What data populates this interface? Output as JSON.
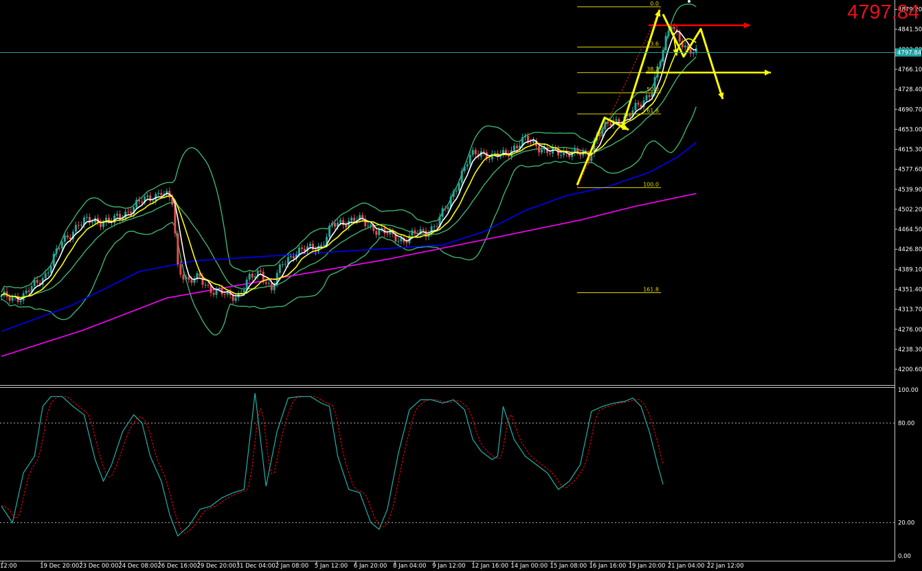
{
  "current_price": "4797.84",
  "chart_data": [
    {
      "type": "candlestick",
      "panel": "main",
      "y_tick_labels": [
        "4879.20",
        "4841.50",
        "4803.80",
        "4766.10",
        "4728.40",
        "4690.70",
        "4653.00",
        "4615.30",
        "4577.60",
        "4539.90",
        "4502.20",
        "4464.50",
        "4426.80",
        "4389.10",
        "4351.40",
        "4313.70",
        "4276.00",
        "4238.30",
        "4200.60"
      ],
      "ylim": [
        4180,
        4889
      ],
      "last_price_tag": "4797.84",
      "x_tick_labels": [
        "12:00",
        "19 Dec 20:00",
        "23 Dec 00:00",
        "24 Dec 08:00",
        "26 Dec 16:00",
        "29 Dec 20:00",
        "31 Dec 04:00",
        "2 Jan 08:00",
        "5 Jan 12:00",
        "6 Jan 20:00",
        "8 Jan 04:00",
        "9 Jan 12:00",
        "12 Jan 16:00",
        "14 Jan 00:00",
        "15 Jan 08:00",
        "16 Jan 16:00",
        "19 Jan 20:00",
        "21 Jan 04:00",
        "22 Jan 12:00"
      ],
      "close_anchors": [
        [
          0,
          4335
        ],
        [
          8,
          4338
        ],
        [
          16,
          4380
        ],
        [
          22,
          4440
        ],
        [
          28,
          4475
        ],
        [
          34,
          4482
        ],
        [
          40,
          4478
        ],
        [
          46,
          4500
        ],
        [
          52,
          4520
        ],
        [
          58,
          4535
        ],
        [
          62,
          4515
        ],
        [
          64,
          4395
        ],
        [
          68,
          4365
        ],
        [
          72,
          4372
        ],
        [
          76,
          4352
        ],
        [
          82,
          4338
        ],
        [
          86,
          4342
        ],
        [
          90,
          4370
        ],
        [
          94,
          4385
        ],
        [
          98,
          4350
        ],
        [
          102,
          4400
        ],
        [
          106,
          4420
        ],
        [
          110,
          4425
        ],
        [
          116,
          4435
        ],
        [
          120,
          4470
        ],
        [
          124,
          4478
        ],
        [
          128,
          4485
        ],
        [
          134,
          4470
        ],
        [
          138,
          4460
        ],
        [
          142,
          4450
        ],
        [
          146,
          4445
        ],
        [
          150,
          4455
        ],
        [
          154,
          4460
        ],
        [
          158,
          4475
        ],
        [
          162,
          4510
        ],
        [
          166,
          4560
        ],
        [
          170,
          4600
        ],
        [
          174,
          4612
        ],
        [
          178,
          4600
        ],
        [
          182,
          4605
        ],
        [
          186,
          4620
        ],
        [
          190,
          4632
        ],
        [
          194,
          4625
        ],
        [
          198,
          4610
        ],
        [
          202,
          4608
        ],
        [
          206,
          4612
        ],
        [
          210,
          4605
        ],
        [
          213,
          4600
        ],
        [
          216,
          4645
        ],
        [
          220,
          4660
        ],
        [
          224,
          4670
        ],
        [
          228,
          4682
        ],
        [
          232,
          4700
        ],
        [
          236,
          4730
        ],
        [
          240,
          4800
        ],
        [
          243,
          4855
        ],
        [
          246,
          4825
        ],
        [
          249,
          4795
        ],
        [
          252,
          4798
        ]
      ],
      "moving_averages": [
        {
          "color": "#0000ff",
          "anchors": [
            [
              0,
              4272
            ],
            [
              25,
              4320
            ],
            [
              50,
              4385
            ],
            [
              70,
              4405
            ],
            [
              100,
              4415
            ],
            [
              130,
              4425
            ],
            [
              160,
              4435
            ],
            [
              175,
              4460
            ],
            [
              190,
              4500
            ],
            [
              205,
              4528
            ],
            [
              220,
              4545
            ],
            [
              235,
              4572
            ],
            [
              245,
              4600
            ],
            [
              252,
              4628
            ]
          ]
        },
        {
          "color": "#ff00ff",
          "anchors": [
            [
              0,
              4225
            ],
            [
              30,
              4275
            ],
            [
              60,
              4335
            ],
            [
              100,
              4372
            ],
            [
              140,
              4408
            ],
            [
              180,
              4450
            ],
            [
              210,
              4482
            ],
            [
              230,
              4508
            ],
            [
              252,
              4532
            ]
          ]
        }
      ],
      "bollinger_color": "#3cb371",
      "fast_ma_color": "#ffffff",
      "slow_ma_color": "#ffff00",
      "fibonacci": {
        "color": "#e6d800",
        "levels": [
          {
            "label": "0.0",
            "price": 4884
          },
          {
            "label": "23.6",
            "price": 4808
          },
          {
            "label": "38.2",
            "price": 4760
          },
          {
            "label": "50.0",
            "price": 4722
          },
          {
            "label": "61.8",
            "price": 4682
          },
          {
            "label": "100.0",
            "price": 4543
          },
          {
            "label": "161.8",
            "price": 4345
          }
        ]
      },
      "annotations": {
        "red_arrow_price": 4849,
        "yellow_horizontal_price": 4760,
        "yellow_arrow_color": "#ffff00",
        "red_arrow_color": "#ff0000"
      }
    },
    {
      "type": "line",
      "panel": "stochastic",
      "y_tick_labels": [
        "100.00",
        "80.00",
        "20.00",
        "0.00"
      ],
      "ylim": [
        0,
        100
      ],
      "k_color": "#20b2aa",
      "d_color": "#ff0000",
      "levels": [
        80,
        20
      ],
      "k_anchors": [
        [
          0,
          30
        ],
        [
          4,
          20
        ],
        [
          8,
          50
        ],
        [
          12,
          60
        ],
        [
          15,
          90
        ],
        [
          18,
          96
        ],
        [
          22,
          96
        ],
        [
          26,
          90
        ],
        [
          30,
          85
        ],
        [
          34,
          58
        ],
        [
          37,
          45
        ],
        [
          40,
          55
        ],
        [
          44,
          75
        ],
        [
          48,
          85
        ],
        [
          51,
          80
        ],
        [
          54,
          60
        ],
        [
          58,
          45
        ],
        [
          61,
          25
        ],
        [
          64,
          12
        ],
        [
          68,
          18
        ],
        [
          72,
          28
        ],
        [
          76,
          30
        ],
        [
          80,
          35
        ],
        [
          84,
          38
        ],
        [
          88,
          40
        ],
        [
          92,
          98
        ],
        [
          96,
          42
        ],
        [
          100,
          75
        ],
        [
          104,
          95
        ],
        [
          108,
          96
        ],
        [
          112,
          96
        ],
        [
          116,
          92
        ],
        [
          119,
          90
        ],
        [
          122,
          60
        ],
        [
          126,
          40
        ],
        [
          130,
          38
        ],
        [
          134,
          20
        ],
        [
          137,
          16
        ],
        [
          140,
          28
        ],
        [
          144,
          62
        ],
        [
          148,
          88
        ],
        [
          152,
          94
        ],
        [
          156,
          94
        ],
        [
          160,
          92
        ],
        [
          164,
          94
        ],
        [
          168,
          88
        ],
        [
          171,
          70
        ],
        [
          174,
          63
        ],
        [
          178,
          58
        ],
        [
          180,
          60
        ],
        [
          182,
          90
        ],
        [
          186,
          70
        ],
        [
          190,
          60
        ],
        [
          194,
          55
        ],
        [
          198,
          50
        ],
        [
          202,
          40
        ],
        [
          206,
          45
        ],
        [
          210,
          55
        ],
        [
          214,
          87
        ],
        [
          218,
          90
        ],
        [
          222,
          92
        ],
        [
          226,
          93
        ],
        [
          229,
          95
        ],
        [
          232,
          90
        ],
        [
          235,
          75
        ],
        [
          238,
          55
        ],
        [
          240,
          43
        ]
      ]
    }
  ]
}
